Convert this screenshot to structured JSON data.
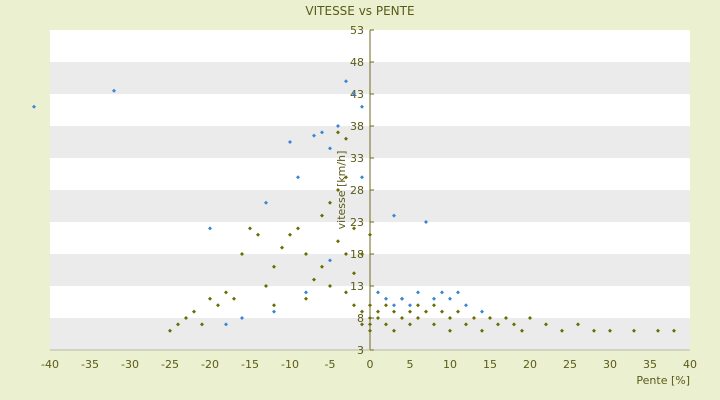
{
  "chart_data": {
    "type": "scatter",
    "title": "VITESSE vs PENTE",
    "xlabel": "Pente [%]",
    "ylabel": "vitesse [km/h]",
    "xlim": [
      -40,
      40
    ],
    "ylim": [
      3,
      53
    ],
    "x_ticks": [
      -40,
      -35,
      -30,
      -25,
      -20,
      -15,
      -10,
      -5,
      0,
      5,
      10,
      15,
      20,
      25,
      30,
      35,
      40
    ],
    "y_ticks": [
      3,
      8,
      13,
      18,
      23,
      28,
      33,
      38,
      43,
      48,
      53
    ],
    "grid": "alternating horizontal bands",
    "legend": "none",
    "series": [
      {
        "color": "#6b6b00",
        "marker": "small diamond",
        "points": [
          [
            -25,
            6
          ],
          [
            -24,
            7
          ],
          [
            -23,
            8
          ],
          [
            -22,
            9
          ],
          [
            -21,
            7
          ],
          [
            -20,
            11
          ],
          [
            -19,
            10
          ],
          [
            -18,
            12
          ],
          [
            -17,
            11
          ],
          [
            -16,
            18
          ],
          [
            -15,
            22
          ],
          [
            -14,
            21
          ],
          [
            -13,
            13
          ],
          [
            -12,
            16
          ],
          [
            -12,
            10
          ],
          [
            -11,
            19
          ],
          [
            -10,
            21
          ],
          [
            -9,
            22
          ],
          [
            -8,
            18
          ],
          [
            -8,
            11
          ],
          [
            -7,
            14
          ],
          [
            -6,
            24
          ],
          [
            -6,
            16
          ],
          [
            -5,
            26
          ],
          [
            -5,
            13
          ],
          [
            -4,
            28
          ],
          [
            -4,
            37
          ],
          [
            -4,
            20
          ],
          [
            -3,
            36
          ],
          [
            -3,
            30
          ],
          [
            -3,
            18
          ],
          [
            -3,
            12
          ],
          [
            -2,
            22
          ],
          [
            -2,
            15
          ],
          [
            -2,
            10
          ],
          [
            -1,
            18
          ],
          [
            -1,
            9
          ],
          [
            -1,
            7
          ],
          [
            0,
            8
          ],
          [
            0,
            7
          ],
          [
            0,
            6
          ],
          [
            0,
            10
          ],
          [
            0,
            21
          ],
          [
            1,
            9
          ],
          [
            1,
            8
          ],
          [
            2,
            10
          ],
          [
            2,
            7
          ],
          [
            3,
            9
          ],
          [
            3,
            6
          ],
          [
            4,
            11
          ],
          [
            4,
            8
          ],
          [
            5,
            9
          ],
          [
            5,
            7
          ],
          [
            6,
            10
          ],
          [
            6,
            8
          ],
          [
            7,
            9
          ],
          [
            8,
            10
          ],
          [
            8,
            7
          ],
          [
            9,
            9
          ],
          [
            10,
            8
          ],
          [
            10,
            6
          ],
          [
            11,
            9
          ],
          [
            12,
            7
          ],
          [
            13,
            8
          ],
          [
            14,
            6
          ],
          [
            15,
            8
          ],
          [
            16,
            7
          ],
          [
            17,
            8
          ],
          [
            18,
            7
          ],
          [
            19,
            6
          ],
          [
            20,
            8
          ],
          [
            22,
            7
          ],
          [
            24,
            6
          ],
          [
            26,
            7
          ],
          [
            28,
            6
          ],
          [
            30,
            6
          ],
          [
            33,
            6
          ],
          [
            36,
            6
          ],
          [
            38,
            6
          ]
        ]
      },
      {
        "color": "#3a86d4",
        "marker": "small diamond",
        "points": [
          [
            -42,
            41
          ],
          [
            -32,
            43.5
          ],
          [
            -20,
            22
          ],
          [
            -13,
            26
          ],
          [
            -10,
            35.5
          ],
          [
            -9,
            30
          ],
          [
            -7,
            36.5
          ],
          [
            -6,
            37
          ],
          [
            -5,
            34.5
          ],
          [
            -4,
            38
          ],
          [
            -3,
            45
          ],
          [
            -2,
            43
          ],
          [
            -1,
            41
          ],
          [
            -1,
            30
          ],
          [
            -5,
            17
          ],
          [
            -8,
            12
          ],
          [
            -12,
            9
          ],
          [
            -16,
            8
          ],
          [
            -18,
            7
          ],
          [
            1,
            12
          ],
          [
            2,
            11
          ],
          [
            3,
            10
          ],
          [
            3,
            24
          ],
          [
            4,
            11
          ],
          [
            5,
            10
          ],
          [
            6,
            12
          ],
          [
            7,
            23
          ],
          [
            8,
            11
          ],
          [
            9,
            12
          ],
          [
            10,
            11
          ],
          [
            11,
            12
          ],
          [
            12,
            10
          ],
          [
            14,
            9
          ]
        ]
      }
    ]
  }
}
